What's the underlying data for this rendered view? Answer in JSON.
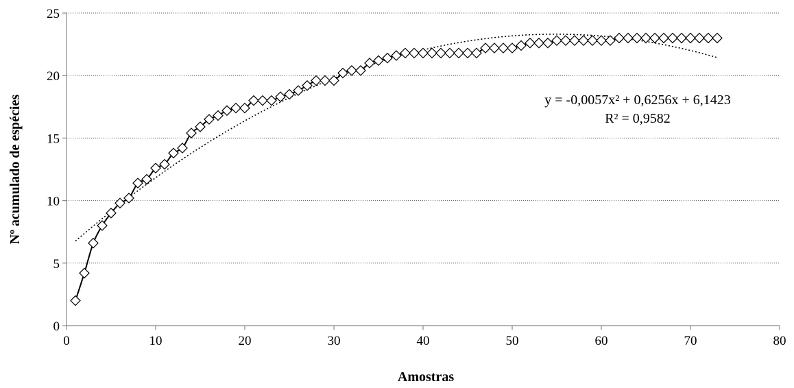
{
  "chart_data": {
    "type": "line",
    "xlabel": "Amostras",
    "ylabel": "Nº acumulado de espécies",
    "xlim": [
      0,
      80
    ],
    "ylim": [
      0,
      25
    ],
    "xticks": [
      "0",
      "10",
      "20",
      "30",
      "40",
      "50",
      "60",
      "70",
      "80"
    ],
    "yticks": [
      "0",
      "5",
      "10",
      "15",
      "20",
      "25"
    ],
    "grid": "horizontal dotted",
    "legend": "none",
    "series": [
      {
        "marker": "diamond",
        "color": "#000000",
        "x": [
          1,
          2,
          3,
          4,
          5,
          6,
          7,
          8,
          9,
          10,
          11,
          12,
          13,
          14,
          15,
          16,
          17,
          18,
          19,
          20,
          21,
          22,
          23,
          24,
          25,
          26,
          27,
          28,
          29,
          30,
          31,
          32,
          33,
          34,
          35,
          36,
          37,
          38,
          39,
          40,
          41,
          42,
          43,
          44,
          45,
          46,
          47,
          48,
          49,
          50,
          51,
          52,
          53,
          54,
          55,
          56,
          57,
          58,
          59,
          60,
          61,
          62,
          63,
          64,
          65,
          66,
          67,
          68,
          69,
          70,
          71,
          72,
          73
        ],
        "values": [
          2.0,
          4.2,
          6.6,
          8.0,
          9.0,
          9.8,
          10.2,
          11.4,
          11.7,
          12.6,
          12.9,
          13.8,
          14.2,
          15.4,
          15.9,
          16.5,
          16.8,
          17.2,
          17.4,
          17.4,
          18.0,
          18.0,
          18.0,
          18.3,
          18.5,
          18.8,
          19.2,
          19.6,
          19.6,
          19.6,
          20.2,
          20.4,
          20.4,
          21.0,
          21.2,
          21.4,
          21.6,
          21.8,
          21.8,
          21.8,
          21.8,
          21.8,
          21.8,
          21.8,
          21.8,
          21.8,
          22.2,
          22.2,
          22.2,
          22.2,
          22.4,
          22.6,
          22.6,
          22.6,
          22.8,
          22.8,
          22.8,
          22.8,
          22.8,
          22.8,
          22.8,
          23.0,
          23.0,
          23.0,
          23.0,
          23.0,
          23.0,
          23.0,
          23.0,
          23.0,
          23.0,
          23.0,
          23.0
        ]
      },
      {
        "style": "dotted",
        "color": "#000000",
        "trendline": "polynomial",
        "coefficients": [
          -0.0057,
          0.6256,
          6.1423
        ],
        "x_range": [
          1,
          73
        ]
      }
    ],
    "annotations": [
      "y = -0,0057x² + 0,6256x + 6,1423",
      "R² = 0,9582"
    ]
  }
}
